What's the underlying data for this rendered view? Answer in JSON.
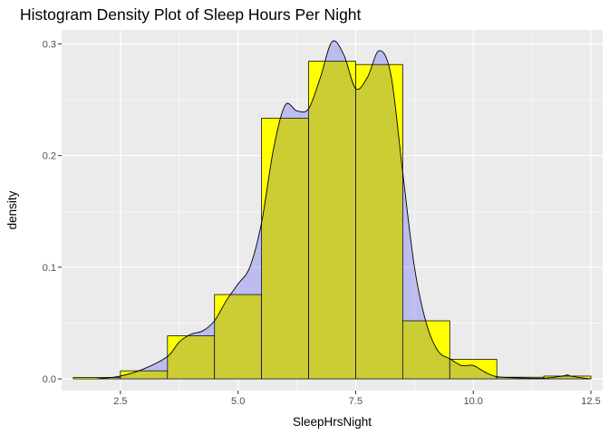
{
  "chart_data": {
    "type": "histogram",
    "title": "Histogram Density Plot of Sleep Hours Per Night",
    "xlabel": "SleepHrsNight",
    "ylabel": "density",
    "xlim": [
      1.25,
      12.75
    ],
    "ylim": [
      -0.0105,
      0.3125
    ],
    "x_ticks": [
      2.5,
      5.0,
      7.5,
      10.0,
      12.5
    ],
    "x_tick_labels": [
      "2.5",
      "5.0",
      "7.5",
      "10.0",
      "12.5"
    ],
    "y_ticks": [
      0.0,
      0.1,
      0.2,
      0.3
    ],
    "y_tick_labels": [
      "0.0",
      "0.1",
      "0.2",
      "0.3"
    ],
    "grid": true,
    "panel_background": "#ebebeb",
    "bar_fill": "#ffff00",
    "bar_outline": "#000000",
    "density_fill": "#0000ff",
    "density_fill_alpha": 0.2,
    "density_line": "#000000",
    "bins": [
      {
        "start": 1.5,
        "end": 2.5,
        "density": 0.0013
      },
      {
        "start": 2.5,
        "end": 3.5,
        "density": 0.0072
      },
      {
        "start": 3.5,
        "end": 4.5,
        "density": 0.0385
      },
      {
        "start": 4.5,
        "end": 5.5,
        "density": 0.0755
      },
      {
        "start": 5.5,
        "end": 6.5,
        "density": 0.2335
      },
      {
        "start": 6.5,
        "end": 7.5,
        "density": 0.2845
      },
      {
        "start": 7.5,
        "end": 8.5,
        "density": 0.2815
      },
      {
        "start": 8.5,
        "end": 9.5,
        "density": 0.052
      },
      {
        "start": 9.5,
        "end": 10.5,
        "density": 0.0175
      },
      {
        "start": 10.5,
        "end": 11.5,
        "density": 0.0015
      },
      {
        "start": 11.5,
        "end": 12.5,
        "density": 0.0025
      }
    ],
    "density_curve": {
      "x": [
        2.0,
        2.5,
        3.0,
        3.5,
        3.75,
        4.0,
        4.25,
        4.5,
        4.75,
        5.0,
        5.25,
        5.5,
        5.75,
        6.0,
        6.25,
        6.5,
        6.75,
        7.0,
        7.25,
        7.5,
        7.75,
        8.0,
        8.25,
        8.5,
        8.75,
        9.0,
        9.25,
        9.5,
        9.75,
        10.0,
        10.25,
        10.5,
        11.0,
        11.5,
        11.9,
        12.0,
        12.1,
        12.5
      ],
      "y": [
        0.0,
        0.0025,
        0.009,
        0.02,
        0.033,
        0.04,
        0.043,
        0.052,
        0.07,
        0.085,
        0.1,
        0.14,
        0.205,
        0.245,
        0.24,
        0.242,
        0.27,
        0.302,
        0.29,
        0.26,
        0.27,
        0.294,
        0.272,
        0.185,
        0.1,
        0.05,
        0.025,
        0.018,
        0.012,
        0.012,
        0.006,
        0.002,
        0.0008,
        0.0006,
        0.0025,
        0.0035,
        0.0022,
        0.0
      ]
    }
  }
}
